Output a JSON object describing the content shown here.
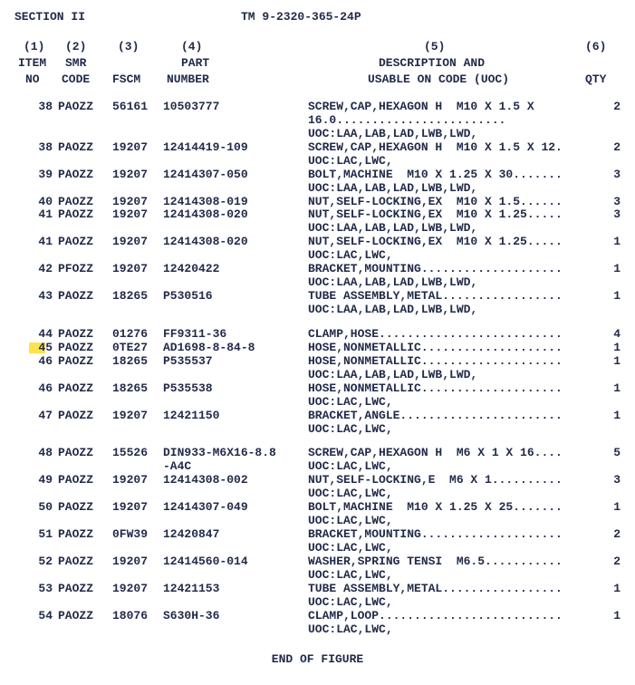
{
  "header": {
    "section": "SECTION II",
    "tm": "TM 9-2320-365-24P"
  },
  "cols": {
    "n1": "(1)",
    "n2": "(2)",
    "n3": "(3)",
    "n4": "(4)",
    "n5": "(5)",
    "n6": "(6)",
    "item": "ITEM",
    "no": "NO",
    "smr": "SMR",
    "code": "CODE",
    "fscm": "FSCM",
    "part": "PART",
    "number": "NUMBER",
    "desc1": "DESCRIPTION AND",
    "desc2": "USABLE ON CODE (UOC)",
    "qty": "QTY"
  },
  "rows": [
    {
      "item": "38",
      "smr": "PAOZZ",
      "fscm": "56161",
      "part": "10503777",
      "desc": [
        "SCREW,CAP,HEXAGON H  M10 X 1.5 X",
        "16.0........................",
        "UOC:LAA,LAB,LAD,LWB,LWD,"
      ],
      "qty": "2",
      "gap": true
    },
    {
      "item": "38",
      "smr": "PAOZZ",
      "fscm": "19207",
      "part": "12414419-109",
      "desc": [
        "SCREW,CAP,HEXAGON H  M10 X 1.5 X 12.",
        "UOC:LAC,LWC,"
      ],
      "qty": "2"
    },
    {
      "item": "39",
      "smr": "PAOZZ",
      "fscm": "19207",
      "part": "12414307-050",
      "desc": [
        "BOLT,MACHINE  M10 X 1.25 X 30.......",
        "UOC:LAA,LAB,LAD,LWB,LWD,"
      ],
      "qty": "3"
    },
    {
      "item": "40",
      "smr": "PAOZZ",
      "fscm": "19207",
      "part": "12414308-019",
      "desc": [
        "NUT,SELF-LOCKING,EX  M10 X 1.5......"
      ],
      "qty": "3"
    },
    {
      "item": "41",
      "smr": "PAOZZ",
      "fscm": "19207",
      "part": "12414308-020",
      "desc": [
        "NUT,SELF-LOCKING,EX  M10 X 1.25.....",
        "UOC:LAA,LAB,LAD,LWB,LWD,"
      ],
      "qty": "3"
    },
    {
      "item": "41",
      "smr": "PAOZZ",
      "fscm": "19207",
      "part": "12414308-020",
      "desc": [
        "NUT,SELF-LOCKING,EX  M10 X 1.25.....",
        "UOC:LAC,LWC,"
      ],
      "qty": "1"
    },
    {
      "item": "42",
      "smr": "PFOZZ",
      "fscm": "19207",
      "part": "12420422",
      "desc": [
        "BRACKET,MOUNTING....................",
        "UOC:LAA,LAB,LAD,LWB,LWD,"
      ],
      "qty": "1"
    },
    {
      "item": "43",
      "smr": "PAOZZ",
      "fscm": "18265",
      "part": "P530516",
      "desc": [
        "TUBE ASSEMBLY,METAL.................",
        "UOC:LAA,LAB,LAD,LWB,LWD,"
      ],
      "qty": "1"
    },
    {
      "item": "44",
      "smr": "PAOZZ",
      "fscm": "01276",
      "part": "FF9311-36",
      "desc": [
        "CLAMP,HOSE.........................."
      ],
      "qty": "4",
      "gap": true
    },
    {
      "item": "45",
      "smr": "PAOZZ",
      "fscm": "0TE27",
      "part": "AD1698-8-84-8",
      "desc": [
        "HOSE,NONMETALLIC...................."
      ],
      "qty": "1",
      "hl": true
    },
    {
      "item": "46",
      "smr": "PAOZZ",
      "fscm": "18265",
      "part": "P535537",
      "desc": [
        "HOSE,NONMETALLIC....................",
        "UOC:LAA,LAB,LAD,LWB,LWD,"
      ],
      "qty": "1"
    },
    {
      "item": "46",
      "smr": "PAOZZ",
      "fscm": "18265",
      "part": "P535538",
      "desc": [
        "HOSE,NONMETALLIC....................",
        "UOC:LAC,LWC,"
      ],
      "qty": "1"
    },
    {
      "item": "47",
      "smr": "PAOZZ",
      "fscm": "19207",
      "part": "12421150",
      "desc": [
        "BRACKET,ANGLE.......................",
        "UOC:LAC,LWC,"
      ],
      "qty": "1"
    },
    {
      "item": "48",
      "smr": "PAOZZ",
      "fscm": "15526",
      "part": "DIN933-M6X16-8.8",
      "part2": "-A4C",
      "desc": [
        "SCREW,CAP,HEXAGON H  M6 X 1 X 16....",
        "UOC:LAC,LWC,"
      ],
      "qty": "5",
      "gap": true
    },
    {
      "item": "49",
      "smr": "PAOZZ",
      "fscm": "19207",
      "part": "12414308-002",
      "desc": [
        "NUT,SELF-LOCKING,E  M6 X 1..........",
        "UOC:LAC,LWC,"
      ],
      "qty": "3"
    },
    {
      "item": "50",
      "smr": "PAOZZ",
      "fscm": "19207",
      "part": "12414307-049",
      "desc": [
        "BOLT,MACHINE  M10 X 1.25 X 25.......",
        "UOC:LAC,LWC,"
      ],
      "qty": "1"
    },
    {
      "item": "51",
      "smr": "PAOZZ",
      "fscm": "0FW39",
      "part": "12420847",
      "desc": [
        "BRACKET,MOUNTING....................",
        "UOC:LAC,LWC,"
      ],
      "qty": "2"
    },
    {
      "item": "52",
      "smr": "PAOZZ",
      "fscm": "19207",
      "part": "12414560-014",
      "desc": [
        "WASHER,SPRING TENSI  M6.5...........",
        "UOC:LAC,LWC,"
      ],
      "qty": "2"
    },
    {
      "item": "53",
      "smr": "PAOZZ",
      "fscm": "19207",
      "part": "12421153",
      "desc": [
        "TUBE ASSEMBLY,METAL.................",
        "UOC:LAC,LWC,"
      ],
      "qty": "1"
    },
    {
      "item": "54",
      "smr": "PAOZZ",
      "fscm": "18076",
      "part": "S630H-36",
      "desc": [
        "CLAMP,LOOP..........................",
        "UOC:LAC,LWC,"
      ],
      "qty": "1"
    }
  ],
  "footer": "END OF FIGURE"
}
